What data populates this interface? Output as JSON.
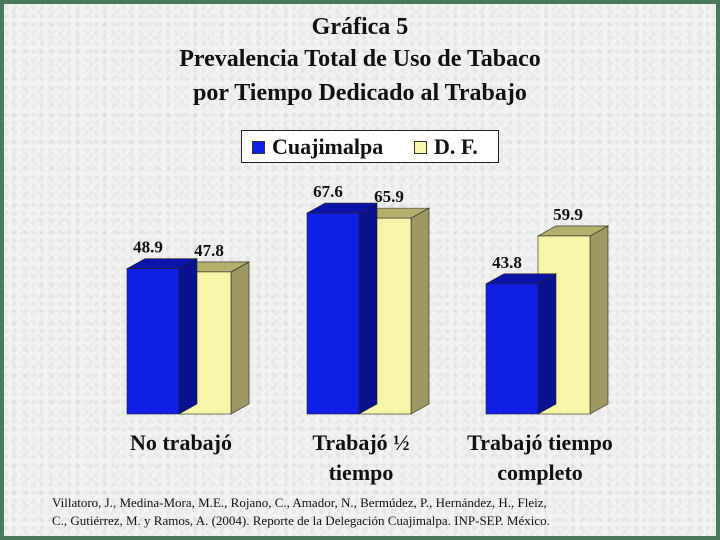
{
  "title": {
    "line1": "Gráfica 5",
    "line2": "Prevalencia Total de Uso de Tabaco",
    "line3": "por Tiempo Dedicado al Trabajo"
  },
  "citation": {
    "line1": "Villatoro, J., Medina-Mora, M.E., Rojano, C., Amador, N., Bermúdez, P., Hernández, H., Fleiz,",
    "line2": "C., Gutiérrez, M. y Ramos, A. (2004). Reporte de la Delegación Cuajimalpa. INP-SEP. México."
  },
  "colors": {
    "cuajimalpa": "#0f1fe6",
    "df": "#f6f5a8"
  },
  "chart_data": {
    "type": "bar",
    "categories": [
      [
        "No trabajó"
      ],
      [
        "Trabajó ½",
        "tiempo"
      ],
      [
        "Trabajó tiempo",
        "completo"
      ]
    ],
    "series": [
      {
        "name": "Cuajimalpa",
        "values": [
          48.9,
          67.6,
          43.8
        ]
      },
      {
        "name": "D. F.",
        "values": [
          47.8,
          65.9,
          59.9
        ]
      }
    ],
    "value_labels": [
      [
        "48.9",
        "67.6",
        "43.8"
      ],
      [
        "47.8",
        "65.9",
        "59.9"
      ]
    ],
    "ylim": [
      0,
      72
    ],
    "grid": false,
    "legend_position": "top-center",
    "three_d": true
  }
}
